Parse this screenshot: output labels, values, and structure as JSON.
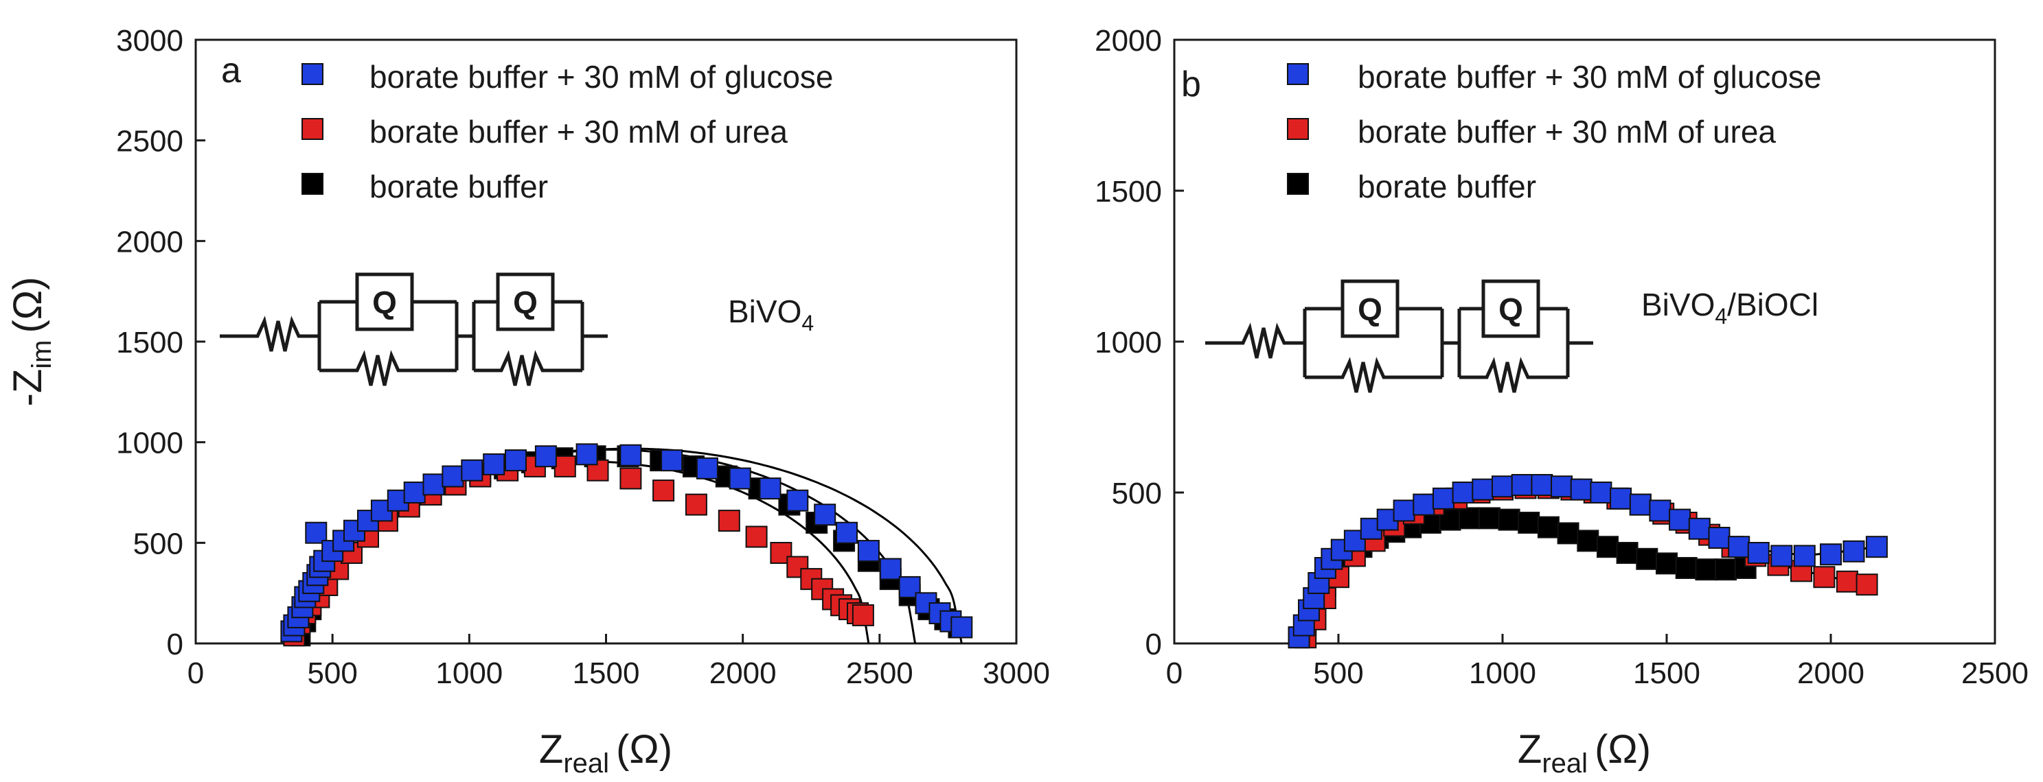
{
  "colors": {
    "glucose": "#1f3fe0",
    "urea": "#e02121",
    "buffer": "#000000",
    "fit": "#000000",
    "axis": "#1a1a1a"
  },
  "chart_data": [
    {
      "type": "scatter",
      "panel_label": "a",
      "sample_label": "BiVO",
      "sample_label_sub": "4",
      "xlabel": "Z",
      "xlabel_sub": "real",
      "xlabel_unit": "(Ω)",
      "ylabel_prefix": "-Z",
      "ylabel_sub": "im",
      "ylabel_unit": "(Ω)",
      "xlim": [
        0,
        3000
      ],
      "ylim": [
        0,
        3000
      ],
      "xticks": [
        0,
        500,
        1000,
        1500,
        2000,
        2500,
        3000
      ],
      "yticks": [
        0,
        500,
        1000,
        1500,
        2000,
        2500,
        3000
      ],
      "legend_position": "top-left",
      "circuit": {
        "element_label": "Q",
        "element_label_2": "Q"
      },
      "series": [
        {
          "name": "borate buffer + 30 mM of glucose",
          "color_key": "glucose",
          "x": [
            350,
            360,
            375,
            390,
            400,
            415,
            430,
            440,
            445,
            455,
            470,
            500,
            540,
            580,
            630,
            680,
            740,
            800,
            870,
            940,
            1010,
            1090,
            1170,
            1280,
            1430,
            1590,
            1740,
            1870,
            1990,
            2100,
            2200,
            2300,
            2380,
            2460,
            2540,
            2610,
            2670,
            2720,
            2760,
            2800
          ],
          "y": [
            60,
            90,
            130,
            180,
            230,
            260,
            300,
            550,
            340,
            380,
            410,
            460,
            510,
            560,
            610,
            660,
            710,
            750,
            790,
            830,
            860,
            890,
            910,
            930,
            940,
            935,
            910,
            870,
            820,
            770,
            710,
            640,
            550,
            460,
            370,
            280,
            200,
            150,
            110,
            80
          ]
        },
        {
          "name": "borate buffer + 30 mM of urea",
          "color_key": "urea",
          "x": [
            360,
            380,
            400,
            420,
            450,
            480,
            520,
            570,
            630,
            700,
            780,
            860,
            950,
            1040,
            1140,
            1240,
            1350,
            1470,
            1590,
            1710,
            1830,
            1950,
            2050,
            2140,
            2200,
            2250,
            2290,
            2330,
            2360,
            2390,
            2420,
            2440
          ],
          "y": [
            40,
            100,
            150,
            190,
            230,
            290,
            370,
            450,
            530,
            610,
            680,
            740,
            790,
            830,
            860,
            880,
            880,
            860,
            820,
            760,
            690,
            610,
            530,
            450,
            380,
            320,
            270,
            220,
            190,
            170,
            150,
            140
          ]
        },
        {
          "name": "borate buffer",
          "color_key": "buffer",
          "x": [
            380,
            400,
            420,
            450,
            480,
            520,
            570,
            630,
            700,
            780,
            860,
            950,
            1040,
            1130,
            1230,
            1340,
            1460,
            1580,
            1700,
            1820,
            1940,
            2060,
            2170,
            2270,
            2370,
            2460,
            2540,
            2610,
            2680,
            2740,
            2790
          ],
          "y": [
            40,
            110,
            170,
            230,
            290,
            370,
            450,
            530,
            610,
            680,
            740,
            790,
            840,
            870,
            900,
            920,
            930,
            930,
            910,
            880,
            830,
            770,
            690,
            600,
            510,
            410,
            320,
            240,
            170,
            120,
            80
          ]
        }
      ],
      "fits": [
        {
          "center": 1510,
          "radius": 1120,
          "yscale": 0.86,
          "xmin": 390,
          "xmax": 2630
        },
        {
          "center": 1420,
          "radius": 1040,
          "yscale": 0.87,
          "xmin": 380,
          "xmax": 2460
        },
        {
          "center": 1590,
          "radius": 1210,
          "yscale": 0.8,
          "xmin": 380,
          "xmax": 2800
        }
      ]
    },
    {
      "type": "scatter",
      "panel_label": "b",
      "sample_label": "BiVO",
      "sample_label_sub": "4",
      "sample_label_tail": "/BiOCl",
      "xlabel": "Z",
      "xlabel_sub": "real",
      "xlabel_unit": "(Ω)",
      "xlim": [
        0,
        2500
      ],
      "ylim": [
        0,
        2000
      ],
      "xticks": [
        0,
        500,
        1000,
        1500,
        2000,
        2500
      ],
      "yticks": [
        0,
        500,
        1000,
        1500,
        2000
      ],
      "legend_position": "top-left",
      "circuit": {
        "element_label": "Q",
        "element_label_2": "Q"
      },
      "series": [
        {
          "name": "borate buffer + 30 mM of glucose",
          "color_key": "glucose",
          "x": [
            380,
            395,
            410,
            425,
            440,
            460,
            480,
            510,
            550,
            600,
            650,
            700,
            760,
            820,
            880,
            940,
            1000,
            1060,
            1120,
            1180,
            1240,
            1300,
            1360,
            1420,
            1480,
            1540,
            1600,
            1660,
            1720,
            1780,
            1850,
            1920,
            2000,
            2070,
            2140
          ],
          "y": [
            20,
            60,
            110,
            150,
            200,
            250,
            280,
            310,
            340,
            380,
            410,
            440,
            460,
            480,
            500,
            510,
            520,
            525,
            525,
            520,
            510,
            500,
            480,
            460,
            440,
            410,
            380,
            350,
            320,
            300,
            290,
            290,
            295,
            305,
            320
          ]
        },
        {
          "name": "borate buffer + 30 mM of urea",
          "color_key": "urea",
          "x": [
            400,
            430,
            460,
            500,
            550,
            610,
            670,
            730,
            790,
            860,
            930,
            1000,
            1070,
            1140,
            1210,
            1280,
            1350,
            1420,
            1490,
            1560,
            1630,
            1700,
            1770,
            1840,
            1910,
            1980,
            2050,
            2110
          ],
          "y": [
            20,
            80,
            150,
            220,
            290,
            340,
            390,
            430,
            460,
            480,
            500,
            510,
            515,
            515,
            510,
            500,
            480,
            460,
            430,
            400,
            360,
            320,
            290,
            260,
            240,
            220,
            205,
            195
          ]
        },
        {
          "name": "borate buffer",
          "color_key": "buffer",
          "x": [
            380,
            400,
            420,
            440,
            460,
            480,
            500,
            530,
            570,
            620,
            670,
            720,
            780,
            840,
            900,
            960,
            1020,
            1080,
            1140,
            1200,
            1260,
            1320,
            1380,
            1440,
            1500,
            1560,
            1620,
            1680,
            1740
          ],
          "y": [
            20,
            60,
            100,
            150,
            190,
            230,
            260,
            290,
            320,
            350,
            370,
            385,
            400,
            410,
            415,
            415,
            410,
            400,
            385,
            365,
            340,
            320,
            300,
            280,
            265,
            250,
            245,
            245,
            250
          ]
        }
      ],
      "fits": [
        {
          "points_x": [
            380,
            450,
            550,
            700,
            850,
            1000,
            1150,
            1300,
            1450,
            1600,
            1750,
            1900,
            2000,
            2140
          ],
          "points_y": [
            0,
            200,
            330,
            430,
            490,
            520,
            525,
            500,
            450,
            380,
            320,
            295,
            300,
            320
          ]
        },
        {
          "points_x": [
            390,
            460,
            560,
            700,
            850,
            1000,
            1150,
            1300,
            1450,
            1600,
            1750,
            1900,
            2000,
            2110
          ],
          "points_y": [
            0,
            190,
            310,
            420,
            480,
            512,
            515,
            490,
            435,
            360,
            290,
            245,
            220,
            195
          ]
        },
        {
          "points_x": [
            380,
            440,
            520,
            620,
            750,
            880,
            1000,
            1120,
            1250,
            1380,
            1500,
            1620,
            1740
          ],
          "points_y": [
            0,
            170,
            290,
            355,
            395,
            415,
            415,
            395,
            345,
            295,
            260,
            245,
            250
          ]
        }
      ]
    }
  ]
}
